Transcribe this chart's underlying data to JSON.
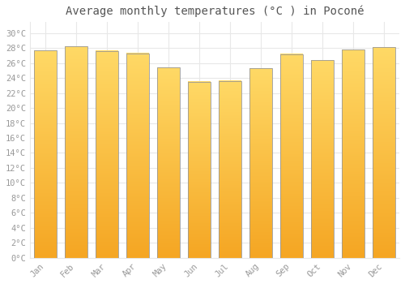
{
  "title": "Average monthly temperatures (°C ) in Poconé",
  "months": [
    "Jan",
    "Feb",
    "Mar",
    "Apr",
    "May",
    "Jun",
    "Jul",
    "Aug",
    "Sep",
    "Oct",
    "Nov",
    "Dec"
  ],
  "values": [
    27.7,
    28.2,
    27.6,
    27.3,
    25.4,
    23.5,
    23.6,
    25.3,
    27.2,
    26.4,
    27.8,
    28.1
  ],
  "bar_color_bottom": "#F5A623",
  "bar_color_top": "#FFD966",
  "bar_edge_color": "#999999",
  "background_color": "#ffffff",
  "grid_color": "#e8e8e8",
  "ytick_labels": [
    "0°C",
    "2°C",
    "4°C",
    "6°C",
    "8°C",
    "10°C",
    "12°C",
    "14°C",
    "16°C",
    "18°C",
    "20°C",
    "22°C",
    "24°C",
    "26°C",
    "28°C",
    "30°C"
  ],
  "ytick_values": [
    0,
    2,
    4,
    6,
    8,
    10,
    12,
    14,
    16,
    18,
    20,
    22,
    24,
    26,
    28,
    30
  ],
  "ylim": [
    0,
    31.5
  ],
  "title_fontsize": 10,
  "tick_fontsize": 7.5,
  "font_family": "monospace"
}
